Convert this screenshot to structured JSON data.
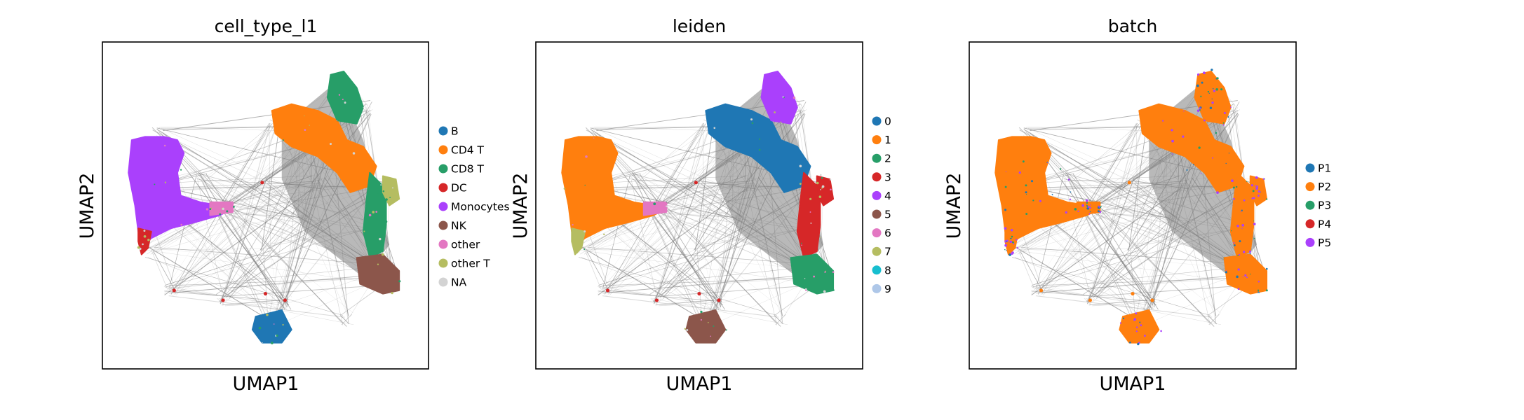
{
  "figure": {
    "background": "#ffffff",
    "edge_color": "#808080"
  },
  "chart_data": [
    {
      "type": "scatter",
      "title": "cell_type_l1",
      "xlabel": "UMAP1",
      "ylabel": "UMAP2",
      "grid": false,
      "ticks": false,
      "legend_placement": "right",
      "legend": [
        {
          "label": "B",
          "color": "#1f77b4"
        },
        {
          "label": "CD4 T",
          "color": "#ff7f0e"
        },
        {
          "label": "CD8 T",
          "color": "#279e68"
        },
        {
          "label": "DC",
          "color": "#d62728"
        },
        {
          "label": "Monocytes",
          "color": "#aa40fc"
        },
        {
          "label": "NK",
          "color": "#8c564b"
        },
        {
          "label": "other",
          "color": "#e377c2"
        },
        {
          "label": "other T",
          "color": "#b5bd61"
        },
        {
          "label": "NA",
          "color": "#d3d3d3"
        }
      ]
    },
    {
      "type": "scatter",
      "title": "leiden",
      "xlabel": "UMAP1",
      "ylabel": "UMAP2",
      "grid": false,
      "ticks": false,
      "legend_placement": "right",
      "legend": [
        {
          "label": "0",
          "color": "#1f77b4"
        },
        {
          "label": "1",
          "color": "#ff7f0e"
        },
        {
          "label": "2",
          "color": "#279e68"
        },
        {
          "label": "3",
          "color": "#d62728"
        },
        {
          "label": "4",
          "color": "#aa40fc"
        },
        {
          "label": "5",
          "color": "#8c564b"
        },
        {
          "label": "6",
          "color": "#e377c2"
        },
        {
          "label": "7",
          "color": "#b5bd61"
        },
        {
          "label": "8",
          "color": "#17becf"
        },
        {
          "label": "9",
          "color": "#aec7e8"
        }
      ]
    },
    {
      "type": "scatter",
      "title": "batch",
      "xlabel": "UMAP1",
      "ylabel": "UMAP2",
      "grid": false,
      "ticks": false,
      "legend_placement": "right",
      "legend": [
        {
          "label": "P1",
          "color": "#1f77b4"
        },
        {
          "label": "P2",
          "color": "#ff7f0e"
        },
        {
          "label": "P3",
          "color": "#279e68"
        },
        {
          "label": "P4",
          "color": "#d62728"
        },
        {
          "label": "P5",
          "color": "#aa40fc"
        }
      ]
    }
  ]
}
